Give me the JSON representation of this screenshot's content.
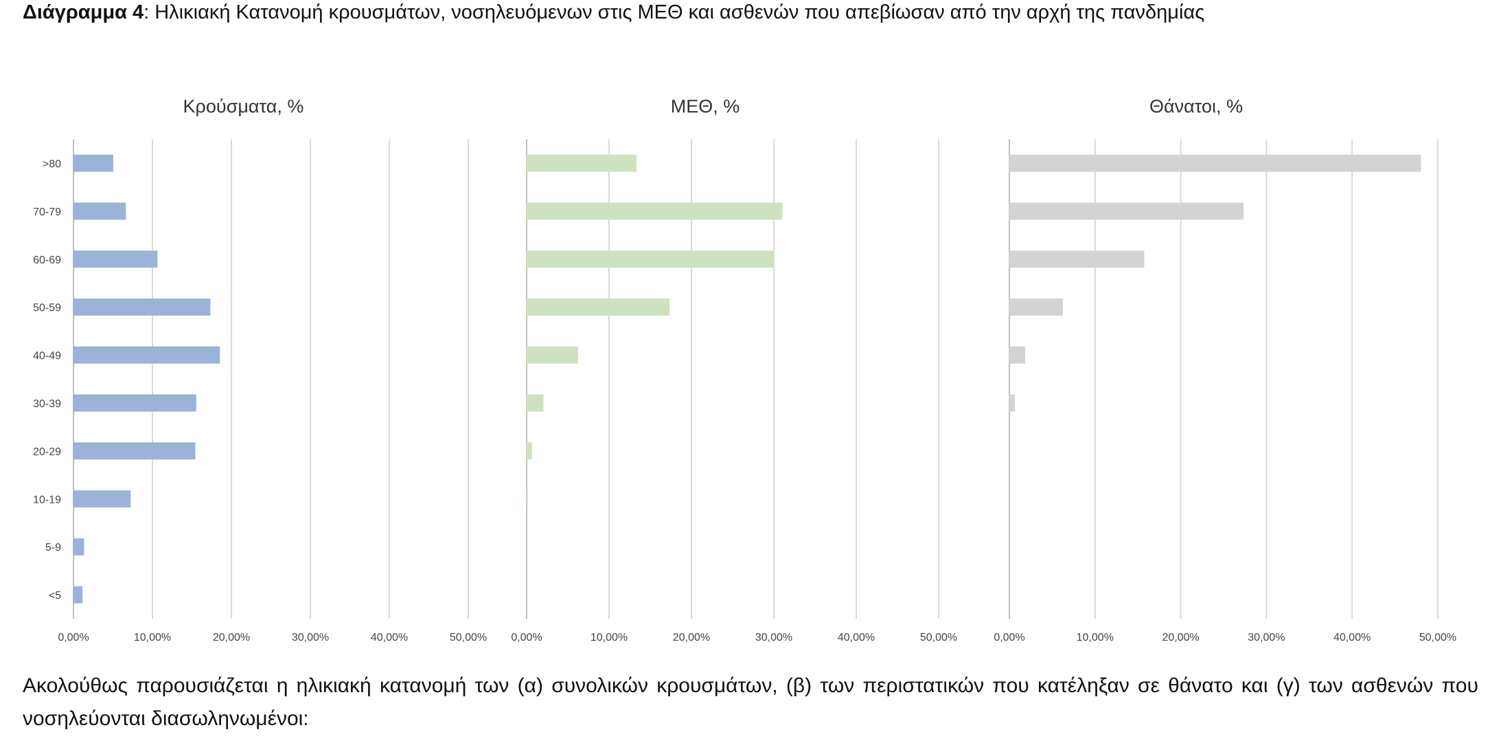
{
  "caption_bold": "Διάγραμμα 4",
  "caption_rest": ": Ηλικιακή Κατανομή κρουσμάτων, νοσηλευόμενων στις ΜΕΘ και ασθενών που απεβίωσαν από την αρχή της πανδημίας",
  "paragraph": "Ακολούθως παρουσιάζεται η ηλικιακή κατανομή των (α) συνολικών κρουσμάτων, (β) των περιστατικών που κατέληξαν σε θάνατο και (γ) των ασθενών που νοσηλεύονται διασωληνωμένοι:",
  "chart_data": [
    {
      "type": "bar",
      "orientation": "horizontal",
      "title": "Κρούσματα, %",
      "categories": [
        ">80",
        "70-79",
        "60-69",
        "50-59",
        "40-49",
        "30-39",
        "20-29",
        "10-19",
        "5-9",
        "<5"
      ],
      "values": [
        5.0,
        6.6,
        10.6,
        17.3,
        18.5,
        15.5,
        15.4,
        7.2,
        1.3,
        1.1
      ],
      "color": "#9bb3d8",
      "xlim": [
        0,
        50
      ],
      "xticks": [
        {
          "value": 0,
          "label": "0,00%"
        },
        {
          "value": 10,
          "label": "10,00%"
        },
        {
          "value": 20,
          "label": "20,00%"
        },
        {
          "value": 30,
          "label": "30,00%"
        },
        {
          "value": 40,
          "label": "40,00%"
        },
        {
          "value": 50,
          "label": "50,00%"
        }
      ],
      "grid": true
    },
    {
      "type": "bar",
      "orientation": "horizontal",
      "title": "ΜΕΘ, %",
      "values": [
        13.3,
        31.0,
        30.0,
        17.3,
        6.2,
        2.0,
        0.6,
        0.1,
        0,
        0
      ],
      "color": "#cfe2bf",
      "xlim": [
        0,
        50
      ],
      "xticks": [
        {
          "value": 0,
          "label": "0,00%"
        },
        {
          "value": 10,
          "label": "10,00%"
        },
        {
          "value": 20,
          "label": "20,00%"
        },
        {
          "value": 30,
          "label": "30,00%"
        },
        {
          "value": 40,
          "label": "40,00%"
        },
        {
          "value": 50,
          "label": "50,00%"
        }
      ],
      "grid": true
    },
    {
      "type": "bar",
      "orientation": "horizontal",
      "title": "Θάνατοι, %",
      "values": [
        48.0,
        27.3,
        15.7,
        6.2,
        1.8,
        0.6,
        0,
        0,
        0,
        0
      ],
      "color": "#d3d3d3",
      "xlim": [
        0,
        50
      ],
      "xticks": [
        {
          "value": 0,
          "label": "0,00%"
        },
        {
          "value": 10,
          "label": "10,00%"
        },
        {
          "value": 20,
          "label": "20,00%"
        },
        {
          "value": 30,
          "label": "30,00%"
        },
        {
          "value": 40,
          "label": "40,00%"
        },
        {
          "value": 50,
          "label": "50,00%"
        }
      ],
      "grid": true
    }
  ]
}
